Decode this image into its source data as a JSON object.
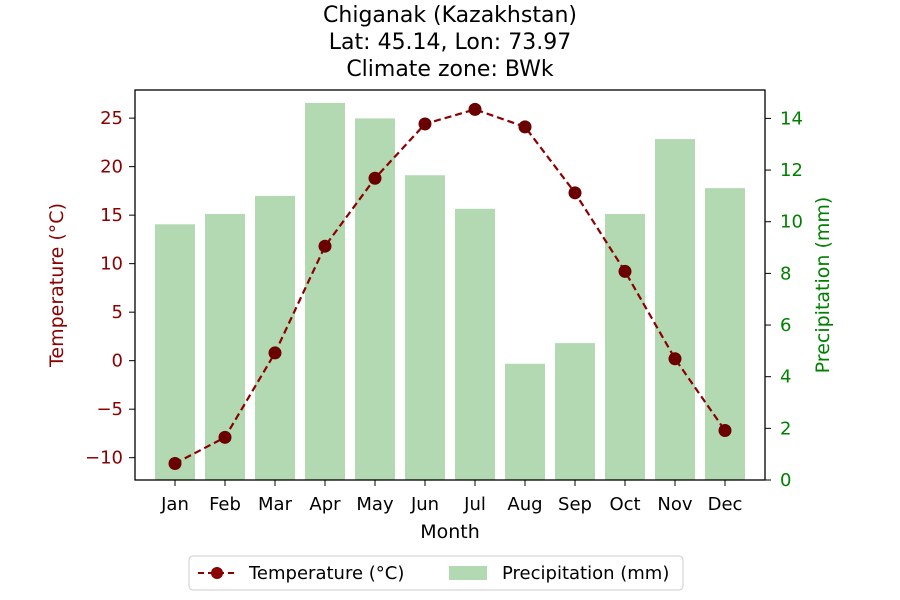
{
  "chart_data": {
    "type": "bar+line",
    "title_lines": [
      "Chiganak (Kazakhstan)",
      "Lat: 45.14, Lon: 73.97",
      "Climate zone: BWk"
    ],
    "xlabel": "Month",
    "ylabel_left": "Temperature (°C)",
    "ylabel_right": "Precipitation (mm)",
    "categories": [
      "Jan",
      "Feb",
      "Mar",
      "Apr",
      "May",
      "Jun",
      "Jul",
      "Aug",
      "Sep",
      "Oct",
      "Nov",
      "Dec"
    ],
    "series": [
      {
        "name": "Temperature (°C)",
        "kind": "line",
        "axis": "left",
        "color": "#8b0000",
        "values": [
          -10.6,
          -7.9,
          0.8,
          11.8,
          18.8,
          24.4,
          25.9,
          24.1,
          17.3,
          9.2,
          0.2,
          -7.2
        ]
      },
      {
        "name": "Precipitation (mm)",
        "kind": "bar",
        "axis": "right",
        "color": "#b2d9b2",
        "values": [
          9.9,
          10.3,
          11.0,
          14.6,
          14.0,
          11.8,
          10.5,
          4.5,
          5.3,
          10.3,
          13.2,
          11.3
        ]
      }
    ],
    "ylim_left": [
      -12.3,
      27.9
    ],
    "ylim_right": [
      0,
      15.1
    ],
    "yticks_left": [
      -10,
      -5,
      0,
      5,
      10,
      15,
      20,
      25
    ],
    "yticks_right": [
      0,
      2,
      4,
      6,
      8,
      10,
      12,
      14
    ],
    "left_axis_color": "#8b0000",
    "right_axis_color": "#008000",
    "legend_position": "bottom-center",
    "grid": false
  }
}
